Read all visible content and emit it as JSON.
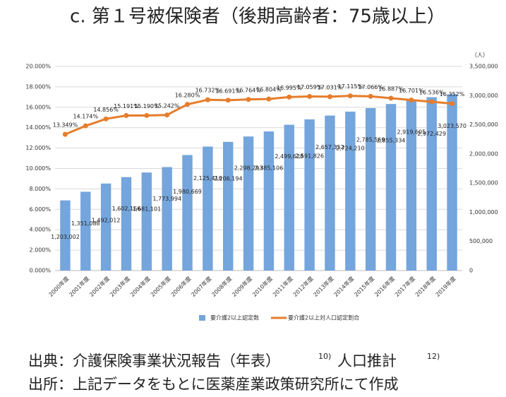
{
  "chart_data": {
    "type": "bar_line",
    "title": "c. 第１号被保険者（後期高齢者：75歳以上）",
    "categories": [
      "2000年度",
      "2001年度",
      "2002年度",
      "2003年度",
      "2004年度",
      "2005年度",
      "2006年度",
      "2007年度",
      "2008年度",
      "2009年度",
      "2010年度",
      "2011年度",
      "2012年度",
      "2013年度",
      "2014年度",
      "2015年度",
      "2016年度",
      "2017年度",
      "2018年度",
      "2019年度"
    ],
    "series": [
      {
        "name": "要介護2以上認定数",
        "type": "bar",
        "axis": "y2",
        "color": "#74a5dc",
        "values": [
          1203002,
          1351088,
          1492012,
          1602166,
          1681101,
          1773994,
          1980669,
          2125416,
          2206194,
          2298293,
          2385106,
          2499628,
          2591826,
          2657352,
          2724210,
          2785569,
          2855334,
          2919605,
          2972429,
          3023570
        ],
        "value_labels": [
          "1,203,002",
          "1,351,088",
          "1,492,012",
          "1,602,166",
          "1,681,101",
          "1,773,994",
          "1,980,669",
          "2,125,416",
          "2,206,194",
          "2,298,293",
          "2,385,106",
          "2,499,628",
          "2,591,826",
          "2,657,352",
          "2,724,210",
          "2,785,569",
          "2,855,334",
          "2,919,605",
          "2,972,429",
          "3,023,570"
        ]
      },
      {
        "name": "要介護2以上対人口認定割合",
        "type": "line",
        "axis": "y",
        "color": "#e57d2c",
        "values": [
          13.349,
          14.174,
          14.856,
          15.191,
          15.19,
          15.242,
          16.28,
          16.732,
          16.691,
          16.764,
          16.804,
          16.995,
          17.059,
          17.031,
          17.115,
          17.066,
          16.887,
          16.701,
          16.536,
          16.352
        ],
        "value_labels": [
          "13.349%",
          "14.174%",
          "14.856%",
          "15.191%",
          "15.190%",
          "15.242%",
          "16.280%",
          "16.732%",
          "16.691%",
          "16.764%",
          "16.804%",
          "16.995%",
          "17.059%",
          "17.031%",
          "17.115%",
          "17.066%",
          "16.887%",
          "16.701%",
          "16.536%",
          "16.352%"
        ]
      }
    ],
    "ylim": [
      0,
      20
    ],
    "yticks": [
      {
        "value": 0,
        "label": "0.000%"
      },
      {
        "value": 2,
        "label": "2.000%"
      },
      {
        "value": 4,
        "label": "4.000%"
      },
      {
        "value": 6,
        "label": "6.000%"
      },
      {
        "value": 8,
        "label": "8.000%"
      },
      {
        "value": 10,
        "label": "10.000%"
      },
      {
        "value": 12,
        "label": "12.000%"
      },
      {
        "value": 14,
        "label": "14.000%"
      },
      {
        "value": 16,
        "label": "16.000%"
      },
      {
        "value": 18,
        "label": "18.000%"
      },
      {
        "value": 20,
        "label": "20.000%"
      }
    ],
    "y2lim": [
      0,
      3500000
    ],
    "y2ticks": [
      0,
      {
        "value": 500000,
        "label": "500,000"
      },
      {
        "value": 1000000,
        "label": "1,000,000"
      },
      {
        "value": 1500000,
        "label": "1,500,000"
      },
      {
        "value": 2000000,
        "label": "2,000,000"
      },
      {
        "value": 2500000,
        "label": "2,500,000"
      },
      {
        "value": 3000000,
        "label": "3,000,000"
      },
      {
        "value": 3500000,
        "label": "3,500,000"
      }
    ],
    "y2_unit": "（人）",
    "grid": true,
    "legend": "bottom"
  },
  "footer": {
    "source": {
      "text": "出典：介護保険事業状況報告（年表）",
      "ref1": "10)",
      "text2": "人口推計",
      "ref2": "12)"
    },
    "origin": "出所：上記データをもとに医薬産業政策研究所にて作成"
  }
}
